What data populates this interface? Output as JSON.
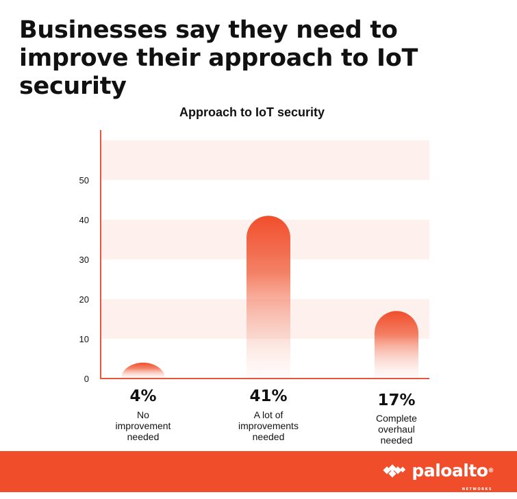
{
  "headline": "Businesses say they need to improve their approach to IoT security",
  "chart_data": {
    "type": "bar",
    "title": "Approach to IoT security",
    "categories": [
      "No improvement needed",
      "A lot of improvements needed",
      "Complete overhaul needed"
    ],
    "values": [
      4,
      41,
      17
    ],
    "value_labels": [
      "4%",
      "41%",
      "17%"
    ],
    "yticks": [
      0,
      10,
      20,
      30,
      40,
      50
    ],
    "ylim": [
      0,
      60
    ],
    "xlabel": "",
    "ylabel": "",
    "grid": "alternating horizontal bands",
    "bar_color": "#f04e2b"
  },
  "footer": {
    "brand": "paloalto",
    "brand_sub": "NETWORKS",
    "registered": "®",
    "background": "#f04e2b",
    "logo_icon": "paloalto-logo-icon"
  }
}
